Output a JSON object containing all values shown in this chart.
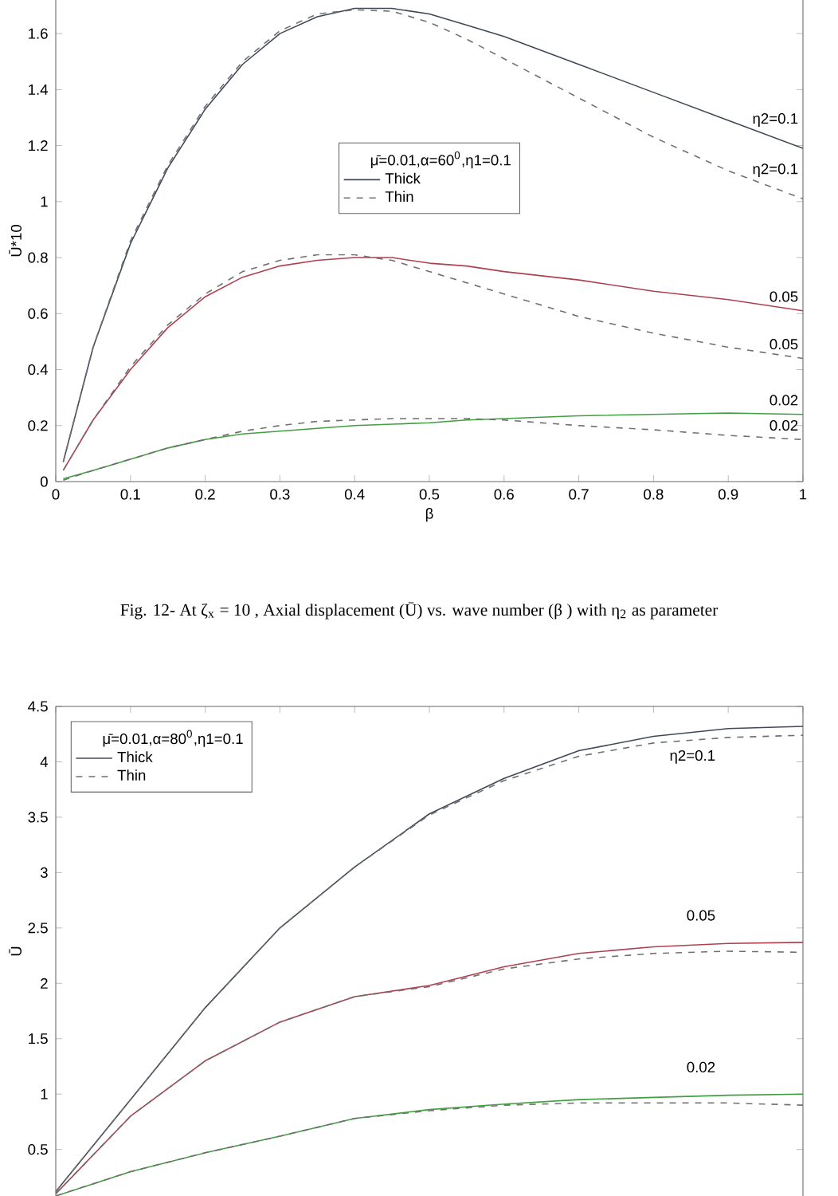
{
  "chart_data": [
    {
      "type": "line",
      "xlabel": "β",
      "ylabel": "Ū*10",
      "legend_title": "μ̄=0.01,α=60$^{0}$,η1=0.1",
      "legend": "center",
      "x": [
        0.01,
        0.05,
        0.1,
        0.15,
        0.2,
        0.25,
        0.3,
        0.35,
        0.4,
        0.45,
        0.5,
        0.55,
        0.6,
        0.7,
        0.8,
        0.9,
        1
      ],
      "xlim": [
        0,
        1
      ],
      "xticks": [
        0,
        0.1,
        0.2,
        0.3,
        0.4,
        0.5,
        0.6,
        0.7,
        0.8,
        0.9,
        1
      ],
      "ylim": [
        0,
        1.72
      ],
      "yticks": [
        0,
        0.2,
        0.4,
        0.6,
        0.8,
        1,
        1.2,
        1.4,
        1.6
      ],
      "series": [
        {
          "name": "Thick",
          "color": "#404858",
          "line_style": "solid",
          "values": [
            0.07,
            0.48,
            0.85,
            1.12,
            1.33,
            1.49,
            1.6,
            1.66,
            1.69,
            1.69,
            1.67,
            1.63,
            1.59,
            1.49,
            1.39,
            1.29,
            1.19
          ]
        },
        {
          "name": "Thin",
          "color": "#707070",
          "line_style": "dashed",
          "values": [
            0.07,
            0.48,
            0.86,
            1.13,
            1.34,
            1.5,
            1.61,
            1.67,
            1.685,
            1.68,
            1.64,
            1.58,
            1.51,
            1.37,
            1.23,
            1.11,
            1.01
          ]
        },
        {
          "color": "#b04050",
          "line_style": "solid",
          "values": [
            0.04,
            0.22,
            0.4,
            0.55,
            0.66,
            0.73,
            0.77,
            0.79,
            0.8,
            0.8,
            0.78,
            0.77,
            0.75,
            0.72,
            0.68,
            0.65,
            0.61
          ]
        },
        {
          "color": "#707070",
          "line_style": "dashed",
          "values": [
            0.04,
            0.22,
            0.41,
            0.56,
            0.67,
            0.75,
            0.79,
            0.81,
            0.81,
            0.79,
            0.75,
            0.71,
            0.67,
            0.59,
            0.53,
            0.48,
            0.44
          ]
        },
        {
          "color": "#40a040",
          "line_style": "solid",
          "values": [
            0.01,
            0.04,
            0.08,
            0.12,
            0.15,
            0.17,
            0.18,
            0.19,
            0.2,
            0.205,
            0.21,
            0.22,
            0.225,
            0.235,
            0.24,
            0.245,
            0.24
          ]
        },
        {
          "color": "#707070",
          "line_style": "dashed",
          "values": [
            0.005,
            0.04,
            0.08,
            0.12,
            0.15,
            0.18,
            0.2,
            0.215,
            0.22,
            0.225,
            0.225,
            0.225,
            0.22,
            0.2,
            0.185,
            0.165,
            0.15
          ]
        }
      ],
      "annotations": [
        "η2=0.1",
        "η2=0.1",
        "0.05",
        "0.05",
        "0.02",
        "0.02",
        "Fig. 12- At ζ$_{x}$ = 10 , Axial displacement (Ū) vs. wave number (β ) with η$_{2}$ as parameter"
      ]
    },
    {
      "type": "line",
      "ylabel": "Ū",
      "legend_title": "μ̄=0.01,α=80$^{0}$,η1=0.1",
      "legend": "top left",
      "tick_labels": "y",
      "categories": [
        null,
        null,
        null,
        null,
        null,
        null,
        null,
        null,
        null,
        null,
        null
      ],
      "ylim": [
        0.08,
        4.5
      ],
      "yticks": [
        0.5,
        1,
        1.5,
        2,
        2.5,
        3,
        3.5,
        4,
        4.5
      ],
      "series": [
        {
          "name": "Thick",
          "color": "#404858",
          "line_style": "solid",
          "values": [
            0.12,
            0.95,
            1.78,
            2.5,
            3.05,
            3.53,
            3.85,
            4.1,
            4.23,
            4.3,
            4.32
          ]
        },
        {
          "name": "Thin",
          "color": "#707070",
          "line_style": "dashed",
          "values": [
            0.12,
            0.95,
            1.78,
            2.5,
            3.05,
            3.52,
            3.83,
            4.05,
            4.17,
            4.22,
            4.24
          ]
        },
        {
          "color": "#b04050",
          "line_style": "solid",
          "values": [
            0.1,
            0.8,
            1.3,
            1.65,
            1.88,
            1.98,
            2.15,
            2.27,
            2.33,
            2.36,
            2.37
          ]
        },
        {
          "color": "#707070",
          "line_style": "dashed",
          "values": [
            0.1,
            0.8,
            1.3,
            1.65,
            1.88,
            1.97,
            2.13,
            2.22,
            2.27,
            2.29,
            2.28
          ]
        },
        {
          "color": "#40a040",
          "line_style": "solid",
          "values": [
            0.08,
            0.3,
            0.47,
            0.62,
            0.78,
            0.86,
            0.91,
            0.95,
            0.97,
            0.99,
            1
          ]
        },
        {
          "color": "#707070",
          "line_style": "dashed",
          "values": [
            0.08,
            0.3,
            0.47,
            0.62,
            0.78,
            0.85,
            0.9,
            0.92,
            0.92,
            0.92,
            0.9
          ]
        }
      ],
      "annotations": [
        "η2=0.1",
        "0.05",
        "0.02"
      ]
    }
  ]
}
